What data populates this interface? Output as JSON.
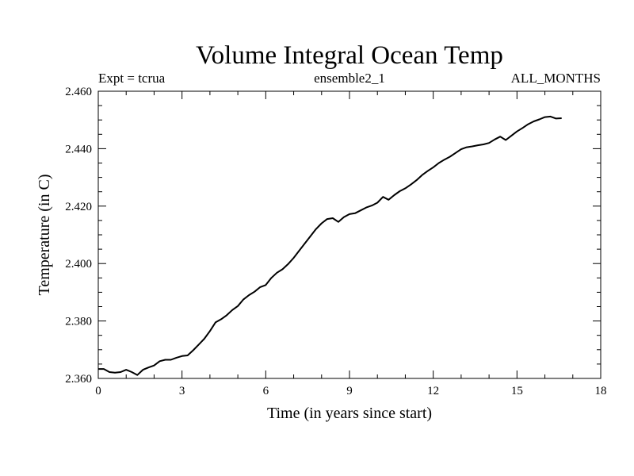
{
  "chart_data": {
    "type": "line",
    "title": "Volume Integral Ocean Temp",
    "header_left": "Expt = tcrua",
    "header_center": "ensemble2_1",
    "header_right": "ALL_MONTHS",
    "xlabel": "Time (in years since start)",
    "ylabel": "Temperature (in C)",
    "xlim": [
      0,
      18
    ],
    "ylim": [
      2.36,
      2.46
    ],
    "x_ticks": [
      0,
      3,
      6,
      9,
      12,
      15,
      18
    ],
    "x_tick_labels": [
      "0",
      "3",
      "6",
      "9",
      "12",
      "15",
      "18"
    ],
    "y_ticks": [
      2.36,
      2.38,
      2.4,
      2.42,
      2.44,
      2.46
    ],
    "y_tick_labels": [
      "2.360",
      "2.380",
      "2.400",
      "2.420",
      "2.440",
      "2.460"
    ],
    "grid": false,
    "series": [
      {
        "name": "Volume Integral Ocean Temp",
        "color": "#000000",
        "x": [
          0.0,
          0.2,
          0.4,
          0.6,
          0.8,
          1.0,
          1.2,
          1.4,
          1.6,
          1.8,
          2.0,
          2.2,
          2.4,
          2.6,
          2.8,
          3.0,
          3.2,
          3.4,
          3.6,
          3.8,
          4.0,
          4.2,
          4.4,
          4.6,
          4.8,
          5.0,
          5.2,
          5.4,
          5.6,
          5.8,
          6.0,
          6.2,
          6.4,
          6.6,
          6.8,
          7.0,
          7.2,
          7.4,
          7.6,
          7.8,
          8.0,
          8.2,
          8.4,
          8.6,
          8.8,
          9.0,
          9.2,
          9.4,
          9.6,
          9.8,
          10.0,
          10.2,
          10.4,
          10.6,
          10.8,
          11.0,
          11.2,
          11.4,
          11.6,
          11.8,
          12.0,
          12.2,
          12.4,
          12.6,
          12.8,
          13.0,
          13.2,
          13.4,
          13.6,
          13.8,
          14.0,
          14.2,
          14.4,
          14.6,
          14.8,
          15.0,
          15.2,
          15.4,
          15.6,
          15.8,
          16.0,
          16.2,
          16.4,
          16.6
        ],
        "values": [
          2.3633,
          2.3633,
          2.3622,
          2.362,
          2.3622,
          2.363,
          2.3622,
          2.3612,
          2.363,
          2.3638,
          2.3645,
          2.366,
          2.3665,
          2.3665,
          2.3672,
          2.3678,
          2.368,
          2.3698,
          2.3718,
          2.3738,
          2.3765,
          2.3795,
          2.3806,
          2.382,
          2.3838,
          2.3852,
          2.3875,
          2.389,
          2.3902,
          2.3918,
          2.3925,
          2.395,
          2.3968,
          2.398,
          2.3998,
          2.402,
          2.4045,
          2.407,
          2.4095,
          2.412,
          2.414,
          2.4155,
          2.4158,
          2.4145,
          2.4162,
          2.4172,
          2.4175,
          2.4185,
          2.4195,
          2.4202,
          2.4212,
          2.4232,
          2.4222,
          2.4238,
          2.4252,
          2.4262,
          2.4275,
          2.429,
          2.4308,
          2.4322,
          2.4335,
          2.435,
          2.4362,
          2.4372,
          2.4385,
          2.4398,
          2.4405,
          2.4408,
          2.4412,
          2.4415,
          2.442,
          2.4432,
          2.4442,
          2.443,
          2.4445,
          2.446,
          2.4472,
          2.4485,
          2.4495,
          2.4502,
          2.451,
          2.4512,
          2.4505,
          2.4506
        ]
      }
    ]
  }
}
